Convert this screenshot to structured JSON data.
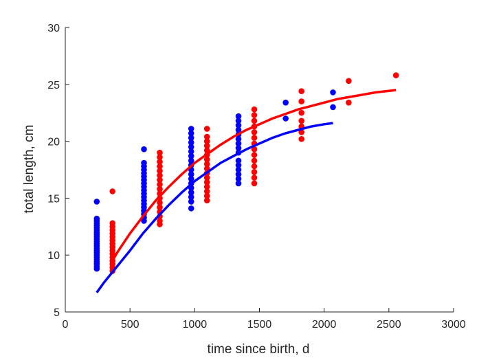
{
  "chart_data": {
    "type": "scatter",
    "title": "",
    "xlabel": "time since birth, d",
    "ylabel": "total length, cm",
    "xlim": [
      0,
      3000
    ],
    "ylim": [
      5,
      30
    ],
    "xticks": [
      0,
      500,
      1000,
      1500,
      2000,
      2500,
      3000
    ],
    "yticks": [
      5,
      10,
      15,
      20,
      25,
      30
    ],
    "grid": false,
    "legend": "none",
    "series": [
      {
        "color": "#0000ff",
        "points": [
          [
            243,
            14.7
          ],
          [
            243,
            13.2
          ],
          [
            243,
            13.0
          ],
          [
            243,
            12.8
          ],
          [
            243,
            12.6
          ],
          [
            243,
            12.4
          ],
          [
            243,
            12.2
          ],
          [
            243,
            12.0
          ],
          [
            243,
            11.8
          ],
          [
            243,
            11.6
          ],
          [
            243,
            11.4
          ],
          [
            243,
            11.2
          ],
          [
            243,
            11.0
          ],
          [
            243,
            10.8
          ],
          [
            243,
            10.6
          ],
          [
            243,
            10.4
          ],
          [
            243,
            10.2
          ],
          [
            243,
            10.0
          ],
          [
            243,
            9.8
          ],
          [
            243,
            9.6
          ],
          [
            243,
            9.4
          ],
          [
            243,
            9.2
          ],
          [
            243,
            9.0
          ],
          [
            243,
            8.8
          ],
          [
            608,
            19.3
          ],
          [
            608,
            18.1
          ],
          [
            608,
            17.8
          ],
          [
            608,
            17.5
          ],
          [
            608,
            17.2
          ],
          [
            608,
            16.9
          ],
          [
            608,
            16.6
          ],
          [
            608,
            16.3
          ],
          [
            608,
            16.0
          ],
          [
            608,
            15.7
          ],
          [
            608,
            15.4
          ],
          [
            608,
            15.1
          ],
          [
            608,
            14.8
          ],
          [
            608,
            14.5
          ],
          [
            608,
            14.2
          ],
          [
            608,
            13.9
          ],
          [
            608,
            13.6
          ],
          [
            608,
            13.3
          ],
          [
            608,
            13.0
          ],
          [
            973,
            21.1
          ],
          [
            973,
            20.7
          ],
          [
            973,
            20.3
          ],
          [
            973,
            19.9
          ],
          [
            973,
            19.5
          ],
          [
            973,
            19.1
          ],
          [
            973,
            18.7
          ],
          [
            973,
            18.3
          ],
          [
            973,
            17.9
          ],
          [
            973,
            17.5
          ],
          [
            973,
            17.1
          ],
          [
            973,
            16.7
          ],
          [
            973,
            16.3
          ],
          [
            973,
            15.9
          ],
          [
            973,
            15.5
          ],
          [
            973,
            15.1
          ],
          [
            973,
            14.7
          ],
          [
            973,
            14.1
          ],
          [
            1338,
            22.2
          ],
          [
            1338,
            21.8
          ],
          [
            1338,
            21.4
          ],
          [
            1338,
            21.0
          ],
          [
            1338,
            20.6
          ],
          [
            1338,
            20.2
          ],
          [
            1338,
            19.8
          ],
          [
            1338,
            19.4
          ],
          [
            1338,
            19.0
          ],
          [
            1338,
            18.3
          ],
          [
            1338,
            17.9
          ],
          [
            1338,
            17.5
          ],
          [
            1338,
            17.1
          ],
          [
            1338,
            16.7
          ],
          [
            1338,
            16.3
          ],
          [
            1703,
            23.4
          ],
          [
            1703,
            22.0
          ],
          [
            2068,
            24.3
          ],
          [
            2068,
            23.0
          ]
        ],
        "curve": [
          [
            243,
            6.7
          ],
          [
            300,
            7.6
          ],
          [
            400,
            9.0
          ],
          [
            500,
            10.4
          ],
          [
            600,
            11.9
          ],
          [
            700,
            13.2
          ],
          [
            800,
            14.4
          ],
          [
            900,
            15.5
          ],
          [
            1000,
            16.5
          ],
          [
            1100,
            17.3
          ],
          [
            1200,
            18.1
          ],
          [
            1300,
            18.7
          ],
          [
            1400,
            19.3
          ],
          [
            1500,
            19.8
          ],
          [
            1600,
            20.3
          ],
          [
            1700,
            20.7
          ],
          [
            1800,
            21.0
          ],
          [
            1900,
            21.3
          ],
          [
            2000,
            21.5
          ],
          [
            2068,
            21.6
          ]
        ]
      },
      {
        "color": "#ff0000",
        "points": [
          [
            365,
            15.6
          ],
          [
            365,
            12.8
          ],
          [
            365,
            12.5
          ],
          [
            365,
            12.2
          ],
          [
            365,
            11.9
          ],
          [
            365,
            11.6
          ],
          [
            365,
            11.3
          ],
          [
            365,
            11.0
          ],
          [
            365,
            10.7
          ],
          [
            365,
            10.4
          ],
          [
            365,
            10.1
          ],
          [
            365,
            9.8
          ],
          [
            365,
            9.5
          ],
          [
            365,
            9.2
          ],
          [
            365,
            8.9
          ],
          [
            365,
            8.6
          ],
          [
            730,
            19.0
          ],
          [
            730,
            18.6
          ],
          [
            730,
            18.2
          ],
          [
            730,
            17.8
          ],
          [
            730,
            17.4
          ],
          [
            730,
            17.0
          ],
          [
            730,
            16.6
          ],
          [
            730,
            16.2
          ],
          [
            730,
            15.8
          ],
          [
            730,
            15.4
          ],
          [
            730,
            15.0
          ],
          [
            730,
            14.6
          ],
          [
            730,
            14.2
          ],
          [
            730,
            13.8
          ],
          [
            730,
            13.4
          ],
          [
            730,
            13.0
          ],
          [
            730,
            12.7
          ],
          [
            1095,
            21.1
          ],
          [
            1095,
            20.4
          ],
          [
            1095,
            20.0
          ],
          [
            1095,
            19.6
          ],
          [
            1095,
            19.2
          ],
          [
            1095,
            18.8
          ],
          [
            1095,
            18.4
          ],
          [
            1095,
            18.0
          ],
          [
            1095,
            17.6
          ],
          [
            1095,
            17.2
          ],
          [
            1095,
            16.8
          ],
          [
            1095,
            16.4
          ],
          [
            1095,
            16.0
          ],
          [
            1095,
            15.6
          ],
          [
            1095,
            15.2
          ],
          [
            1095,
            14.8
          ],
          [
            1460,
            22.8
          ],
          [
            1460,
            22.3
          ],
          [
            1460,
            21.8
          ],
          [
            1460,
            21.3
          ],
          [
            1460,
            20.8
          ],
          [
            1460,
            20.3
          ],
          [
            1460,
            19.8
          ],
          [
            1460,
            19.3
          ],
          [
            1460,
            18.8
          ],
          [
            1460,
            18.3
          ],
          [
            1460,
            17.8
          ],
          [
            1460,
            17.3
          ],
          [
            1460,
            16.8
          ],
          [
            1460,
            16.3
          ],
          [
            1825,
            24.4
          ],
          [
            1825,
            23.5
          ],
          [
            1825,
            22.5
          ],
          [
            1825,
            21.8
          ],
          [
            1825,
            21.3
          ],
          [
            1825,
            20.8
          ],
          [
            1825,
            20.2
          ],
          [
            2190,
            25.3
          ],
          [
            2190,
            23.4
          ],
          [
            2555,
            25.8
          ]
        ],
        "curve": [
          [
            365,
            9.5
          ],
          [
            400,
            10.2
          ],
          [
            500,
            11.9
          ],
          [
            600,
            13.4
          ],
          [
            700,
            14.8
          ],
          [
            800,
            16.0
          ],
          [
            900,
            17.1
          ],
          [
            1000,
            18.1
          ],
          [
            1100,
            18.9
          ],
          [
            1200,
            19.7
          ],
          [
            1300,
            20.4
          ],
          [
            1400,
            21.0
          ],
          [
            1500,
            21.5
          ],
          [
            1600,
            22.0
          ],
          [
            1700,
            22.4
          ],
          [
            1800,
            22.8
          ],
          [
            1900,
            23.1
          ],
          [
            2000,
            23.4
          ],
          [
            2100,
            23.7
          ],
          [
            2200,
            23.9
          ],
          [
            2300,
            24.1
          ],
          [
            2400,
            24.3
          ],
          [
            2555,
            24.5
          ]
        ]
      }
    ]
  }
}
